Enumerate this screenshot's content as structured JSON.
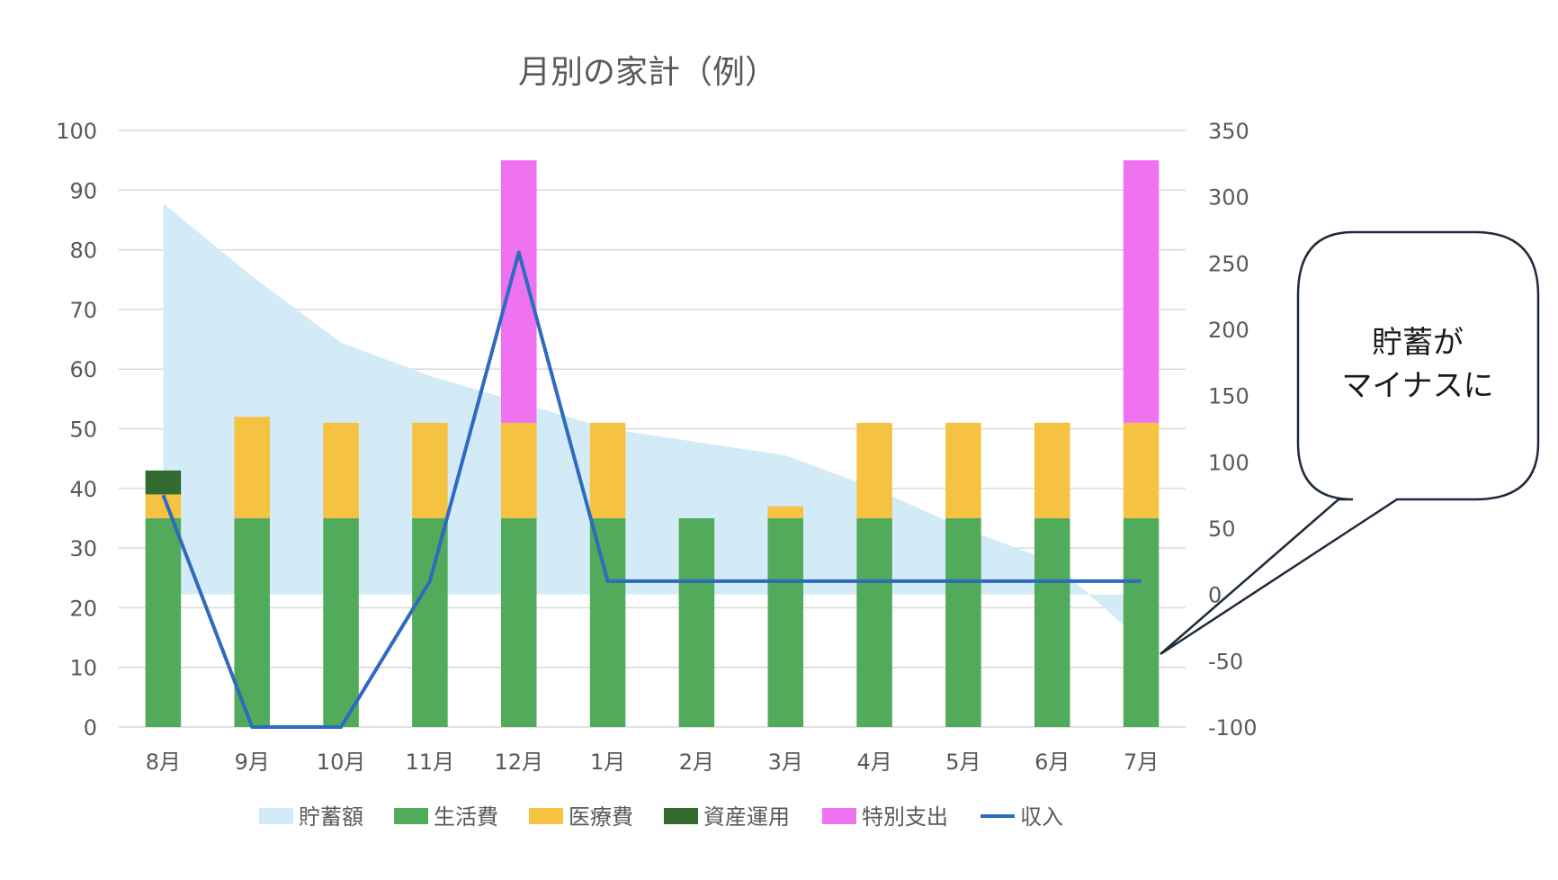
{
  "chart_data": {
    "type": "combo",
    "title": "月別の家計（例）",
    "categories": [
      "8月",
      "9月",
      "10月",
      "11月",
      "12月",
      "1月",
      "2月",
      "3月",
      "4月",
      "5月",
      "6月",
      "7月"
    ],
    "y_left": {
      "ticks": [
        0,
        10,
        20,
        30,
        40,
        50,
        60,
        70,
        80,
        90,
        100
      ],
      "range": [
        0,
        100
      ]
    },
    "y_right": {
      "ticks": [
        -100,
        -50,
        0,
        50,
        100,
        150,
        200,
        250,
        300,
        350
      ],
      "range": [
        -100,
        350
      ]
    },
    "series": [
      {
        "name": "貯蓄額",
        "type": "area",
        "axis": "right",
        "color": "#d3ebf7",
        "values": [
          295,
          240,
          190,
          165,
          145,
          125,
          115,
          105,
          80,
          50,
          25,
          -35
        ]
      },
      {
        "name": "生活費",
        "type": "stacked-bar",
        "axis": "left",
        "color": "#52ab5a",
        "values": [
          35,
          35,
          35,
          35,
          35,
          35,
          35,
          35,
          35,
          35,
          35,
          35
        ]
      },
      {
        "name": "医療費",
        "type": "stacked-bar",
        "axis": "left",
        "color": "#f5c242",
        "values": [
          4,
          17,
          16,
          16,
          16,
          16,
          0,
          2,
          16,
          16,
          16,
          16
        ]
      },
      {
        "name": "資産運用",
        "type": "stacked-bar",
        "axis": "left",
        "color": "#336b2e",
        "values": [
          4,
          0,
          0,
          0,
          0,
          0,
          0,
          0,
          0,
          0,
          0,
          0
        ]
      },
      {
        "name": "特別支出",
        "type": "stacked-bar",
        "axis": "left",
        "color": "#ef73f0",
        "values": [
          0,
          0,
          0,
          0,
          44,
          0,
          0,
          0,
          0,
          0,
          0,
          44
        ]
      },
      {
        "name": "収入",
        "type": "line",
        "axis": "right",
        "color": "#2e6bbf",
        "values": [
          75,
          -100,
          -100,
          10,
          258,
          10,
          10,
          10,
          10,
          10,
          10,
          10
        ]
      }
    ],
    "callout": {
      "text_lines": [
        "貯蓄が",
        "マイナスに"
      ]
    }
  }
}
